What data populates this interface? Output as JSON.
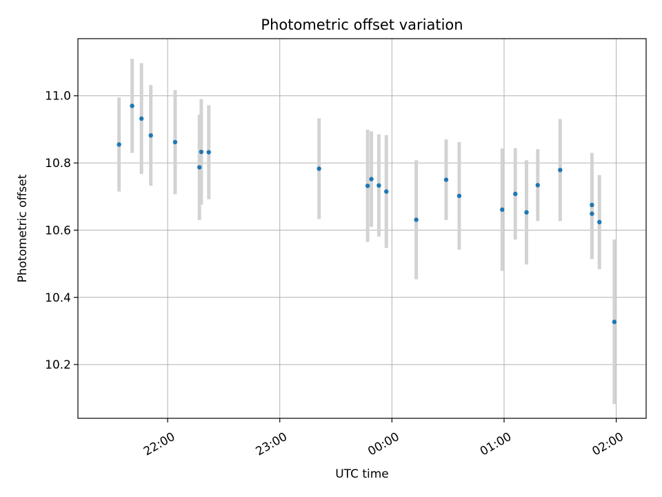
{
  "chart_data": {
    "type": "scatter",
    "title": "Photometric offset variation",
    "xlabel": "UTC time",
    "ylabel": "Photometric offset",
    "x_axis": {
      "kind": "time",
      "ticks": [
        {
          "minute": -120,
          "label": "22:00"
        },
        {
          "minute": -60,
          "label": "23:00"
        },
        {
          "minute": 0,
          "label": "00:00"
        },
        {
          "minute": 60,
          "label": "01:00"
        },
        {
          "minute": 120,
          "label": "02:00"
        }
      ],
      "range_minutes": [
        -168,
        136
      ]
    },
    "y_axis": {
      "ticks": [
        10.2,
        10.4,
        10.6,
        10.8,
        11.0
      ],
      "range": [
        10.04,
        11.17
      ]
    },
    "grid": true,
    "colors": {
      "point": "#1f77b4",
      "errorbar": "#d3d3d3",
      "grid": "#b0b0b0"
    },
    "points": [
      {
        "time": "21:34",
        "y": 10.855,
        "err": 0.14
      },
      {
        "time": "21:41",
        "y": 10.97,
        "err": 0.14
      },
      {
        "time": "21:46",
        "y": 10.932,
        "err": 0.165
      },
      {
        "time": "21:51",
        "y": 10.882,
        "err": 0.15
      },
      {
        "time": "22:04",
        "y": 10.862,
        "err": 0.155
      },
      {
        "time": "22:17",
        "y": 10.787,
        "err": 0.157
      },
      {
        "time": "22:18",
        "y": 10.833,
        "err": 0.157
      },
      {
        "time": "22:22",
        "y": 10.832,
        "err": 0.14
      },
      {
        "time": "23:21",
        "y": 10.783,
        "err": 0.15
      },
      {
        "time": "23:47",
        "y": 10.732,
        "err": 0.167
      },
      {
        "time": "23:49",
        "y": 10.752,
        "err": 0.142
      },
      {
        "time": "23:53",
        "y": 10.733,
        "err": 0.152
      },
      {
        "time": "23:57",
        "y": 10.715,
        "err": 0.168
      },
      {
        "time": "00:13",
        "y": 10.631,
        "err": 0.177
      },
      {
        "time": "00:29",
        "y": 10.75,
        "err": 0.12
      },
      {
        "time": "00:36",
        "y": 10.702,
        "err": 0.16
      },
      {
        "time": "00:59",
        "y": 10.661,
        "err": 0.182
      },
      {
        "time": "01:06",
        "y": 10.708,
        "err": 0.136
      },
      {
        "time": "01:12",
        "y": 10.653,
        "err": 0.155
      },
      {
        "time": "01:18",
        "y": 10.734,
        "err": 0.107
      },
      {
        "time": "01:30",
        "y": 10.779,
        "err": 0.152
      },
      {
        "time": "01:47",
        "y": 10.675,
        "err": 0.155
      },
      {
        "time": "01:47",
        "y": 10.649,
        "err": 0.135
      },
      {
        "time": "01:51",
        "y": 10.624,
        "err": 0.14
      },
      {
        "time": "01:59",
        "y": 10.327,
        "err": 0.245
      }
    ]
  }
}
